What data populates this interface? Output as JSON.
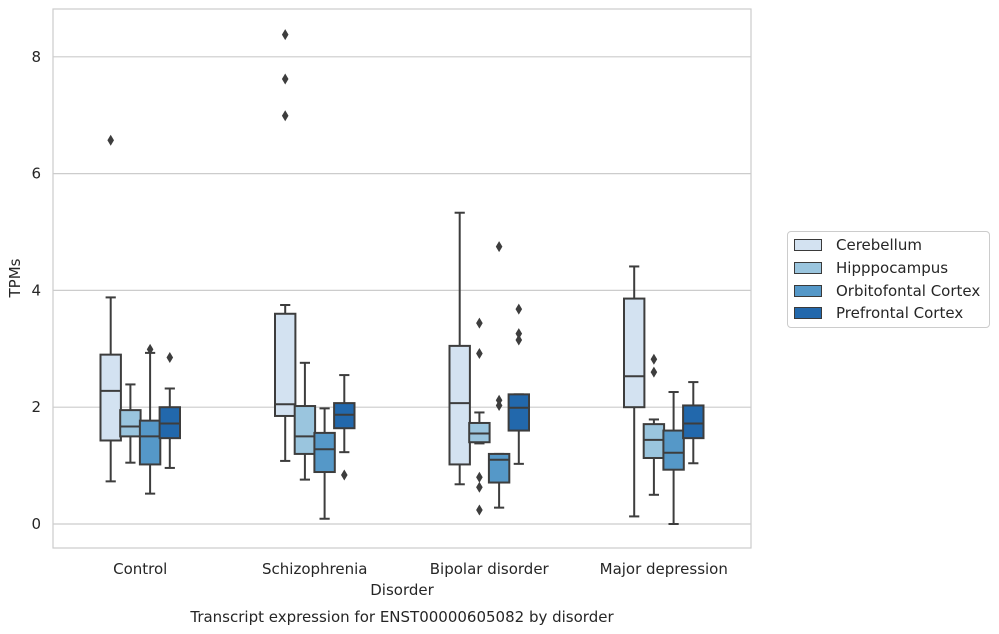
{
  "chart_data": {
    "type": "box",
    "title": "Transcript expression for ENST00000605082 by disorder",
    "xlabel": "Disorder",
    "ylabel": "TPMs",
    "ylim": [
      -0.4,
      8.8
    ],
    "yticks": [
      0,
      2,
      4,
      6,
      8
    ],
    "grid": "horizontal",
    "legend_position": "right",
    "categories": [
      "Control",
      "Schizophrenia",
      "Bipolar disorder",
      "Major depression"
    ],
    "series": [
      {
        "name": "Cerebellum",
        "color": "#d3e2f1",
        "boxes": [
          {
            "whislo": 0.73,
            "q1": 1.43,
            "med": 2.28,
            "q3": 2.9,
            "whishi": 3.88,
            "fliers": [
              6.57
            ]
          },
          {
            "whislo": 1.08,
            "q1": 1.85,
            "med": 2.05,
            "q3": 3.6,
            "whishi": 3.75,
            "fliers": [
              6.99,
              7.62,
              8.38
            ]
          },
          {
            "whislo": 0.68,
            "q1": 1.02,
            "med": 2.07,
            "q3": 3.05,
            "whishi": 5.33,
            "fliers": []
          },
          {
            "whislo": 0.13,
            "q1": 2.0,
            "med": 2.53,
            "q3": 3.86,
            "whishi": 4.41,
            "fliers": []
          }
        ]
      },
      {
        "name": "Hipppocampus",
        "color": "#9ac5de",
        "boxes": [
          {
            "whislo": 1.05,
            "q1": 1.5,
            "med": 1.67,
            "q3": 1.95,
            "whishi": 2.39,
            "fliers": []
          },
          {
            "whislo": 0.76,
            "q1": 1.2,
            "med": 1.5,
            "q3": 2.02,
            "whishi": 2.76,
            "fliers": []
          },
          {
            "whislo": 1.38,
            "q1": 1.4,
            "med": 1.55,
            "q3": 1.73,
            "whishi": 1.91,
            "fliers": [
              0.24,
              0.63,
              0.8,
              2.92,
              3.44
            ]
          },
          {
            "whislo": 0.5,
            "q1": 1.13,
            "med": 1.44,
            "q3": 1.71,
            "whishi": 1.79,
            "fliers": [
              2.6,
              2.82
            ]
          }
        ]
      },
      {
        "name": "Orbitofontal Cortex",
        "color": "#5598c8",
        "boxes": [
          {
            "whislo": 0.52,
            "q1": 1.02,
            "med": 1.5,
            "q3": 1.77,
            "whishi": 2.93,
            "fliers": [
              2.99
            ]
          },
          {
            "whislo": 0.09,
            "q1": 0.89,
            "med": 1.28,
            "q3": 1.56,
            "whishi": 1.98,
            "fliers": []
          },
          {
            "whislo": 0.28,
            "q1": 0.71,
            "med": 1.1,
            "q3": 1.2,
            "whishi": 1.2,
            "fliers": [
              2.03,
              2.12,
              4.75
            ]
          },
          {
            "whislo": 0.0,
            "q1": 0.93,
            "med": 1.22,
            "q3": 1.6,
            "whishi": 2.26,
            "fliers": []
          }
        ]
      },
      {
        "name": "Prefrontal Cortex",
        "color": "#2268ac",
        "boxes": [
          {
            "whislo": 0.96,
            "q1": 1.47,
            "med": 1.72,
            "q3": 2.0,
            "whishi": 2.32,
            "fliers": [
              2.85
            ]
          },
          {
            "whislo": 1.23,
            "q1": 1.64,
            "med": 1.87,
            "q3": 2.07,
            "whishi": 2.55,
            "fliers": [
              0.84
            ]
          },
          {
            "whislo": 1.03,
            "q1": 1.6,
            "med": 1.99,
            "q3": 2.22,
            "whishi": 2.22,
            "fliers": [
              3.15,
              3.26,
              3.68
            ]
          },
          {
            "whislo": 1.04,
            "q1": 1.47,
            "med": 1.72,
            "q3": 2.03,
            "whishi": 2.43,
            "fliers": []
          }
        ]
      }
    ]
  }
}
